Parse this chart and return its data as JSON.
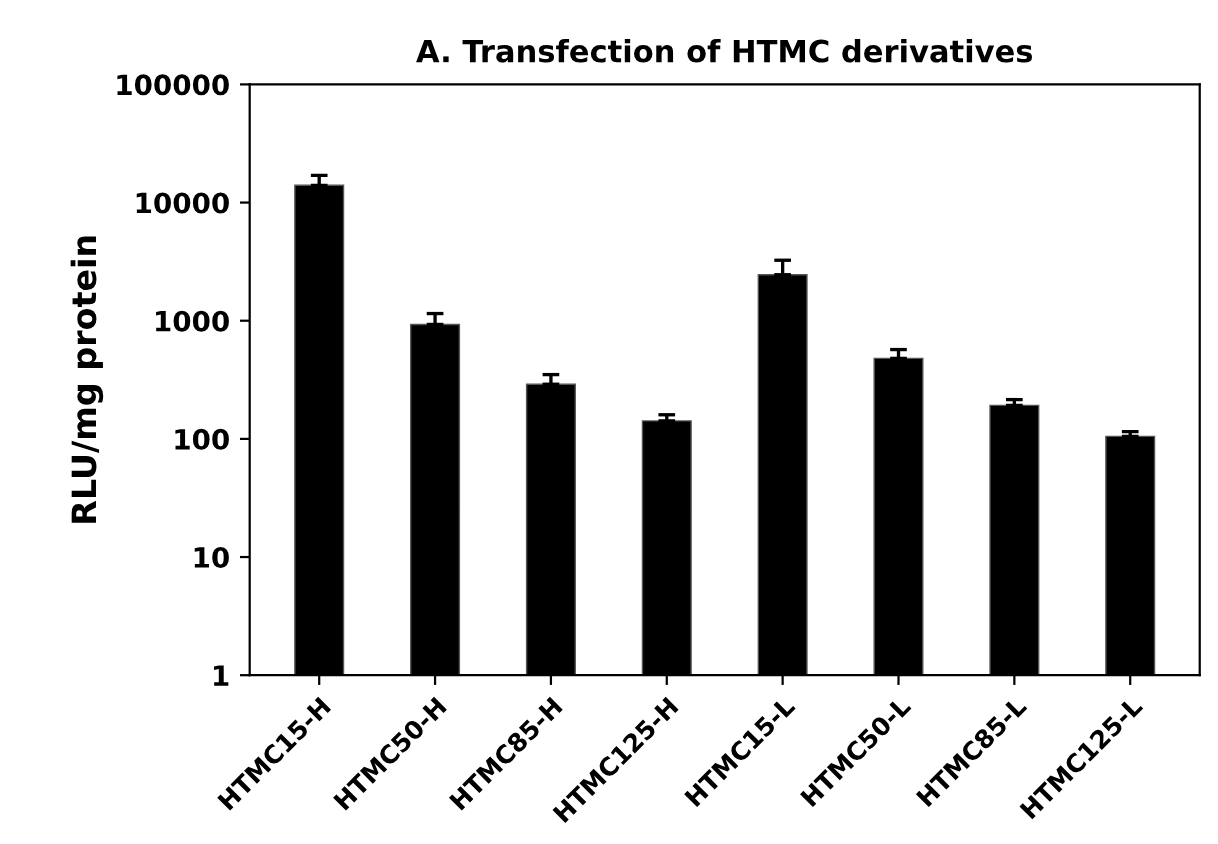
{
  "chart_data": {
    "type": "bar",
    "title": "A. Transfection of HTMC derivatives",
    "ylabel": "RLU/mg protein",
    "categories": [
      "HTMC15-H",
      "HTMC50-H",
      "HTMC85-H",
      "HTMC125-H",
      "HTMC15-L",
      "HTMC50-L",
      "HTMC85-L",
      "HTMC125-L"
    ],
    "values": [
      14000,
      930,
      290,
      142,
      2450,
      480,
      192,
      105
    ],
    "errors": [
      [
        14000,
        17000
      ],
      [
        930,
        1150
      ],
      [
        290,
        350
      ],
      [
        142,
        160
      ],
      [
        2450,
        3250
      ],
      [
        480,
        570
      ],
      [
        192,
        215
      ],
      [
        105,
        115
      ]
    ],
    "color": "#000000",
    "log": true,
    "ylim": [
      1,
      100000
    ],
    "yticks": [
      1,
      10,
      100,
      1000,
      10000,
      100000
    ],
    "grid": false,
    "legend": false
  }
}
